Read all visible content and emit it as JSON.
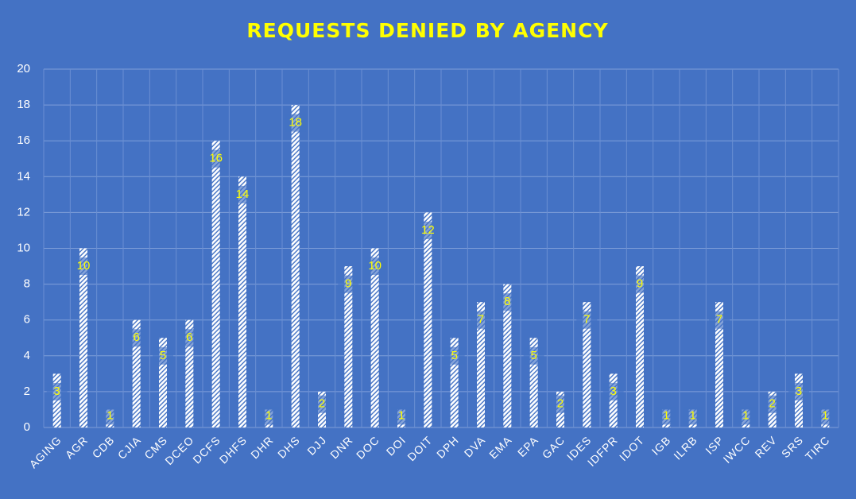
{
  "chart_data": {
    "type": "bar",
    "title": "REQUESTS DENIED BY AGENCY",
    "categories": [
      "AGING",
      "AGR",
      "CDB",
      "CJIA",
      "CMS",
      "DCEO",
      "DCFS",
      "DHFS",
      "DHR",
      "DHS",
      "DJJ",
      "DNR",
      "DOC",
      "DOI",
      "DOIT",
      "DPH",
      "DVA",
      "EMA",
      "EPA",
      "GAC",
      "IDES",
      "IDFPR",
      "IDOT",
      "IGB",
      "ILRB",
      "ISP",
      "IWCC",
      "REV",
      "SRS",
      "TIRC"
    ],
    "values": [
      3,
      10,
      1,
      6,
      5,
      6,
      16,
      14,
      1,
      18,
      2,
      9,
      10,
      1,
      12,
      5,
      7,
      8,
      5,
      2,
      7,
      3,
      9,
      1,
      1,
      7,
      1,
      2,
      3,
      1
    ],
    "color": "#ffffff",
    "ylim": [
      0,
      20
    ],
    "yticks": [
      0,
      2,
      4,
      6,
      8,
      10,
      12,
      14,
      16,
      18,
      20
    ],
    "grid": true
  }
}
